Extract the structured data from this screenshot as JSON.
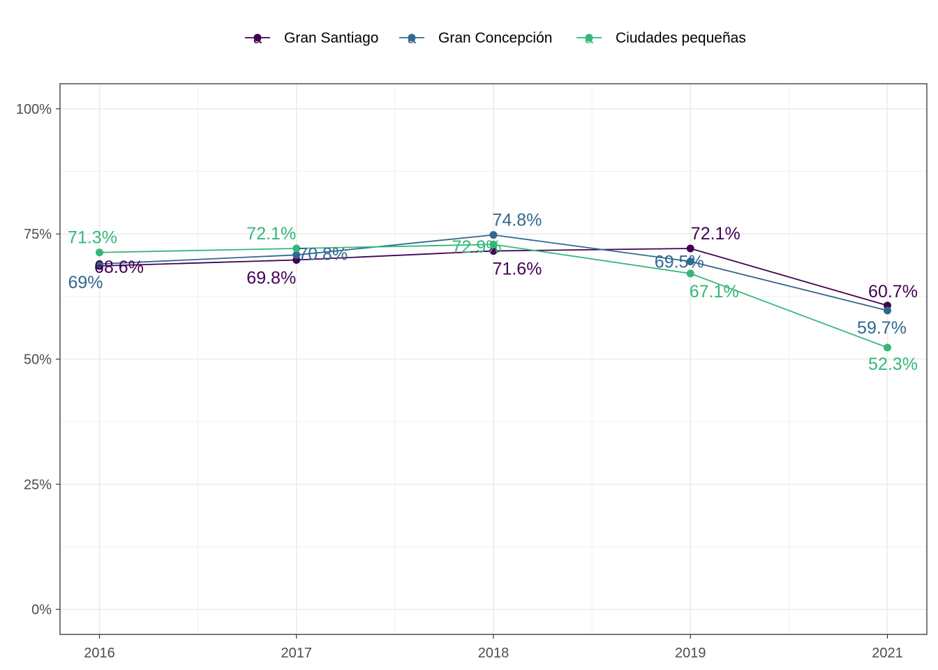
{
  "chart_data": {
    "type": "line",
    "title": "",
    "xlabel": "",
    "ylabel": "",
    "categories": [
      "2016",
      "2017",
      "2018",
      "2019",
      "2021"
    ],
    "ylim": [
      -0.05,
      1.05
    ],
    "y_ticks": [
      0,
      0.25,
      0.5,
      0.75,
      1.0
    ],
    "y_tick_labels": [
      "0%",
      "25%",
      "50%",
      "75%",
      "100%"
    ],
    "grid": true,
    "legend_position": "top",
    "series": [
      {
        "name": "Gran Santiago",
        "color": "#440154",
        "values": [
          0.686,
          0.698,
          0.716,
          0.721,
          0.607
        ],
        "labels": [
          "68.6%",
          "69.8%",
          "71.6%",
          "72.1%",
          "60.7%"
        ]
      },
      {
        "name": "Gran Concepción",
        "color": "#31688e",
        "values": [
          0.69,
          0.708,
          0.748,
          0.695,
          0.597
        ],
        "labels": [
          "69%",
          "70.8%",
          "74.8%",
          "69.5%",
          "59.7%"
        ]
      },
      {
        "name": "Ciudades pequeñas",
        "color": "#35b779",
        "values": [
          0.713,
          0.721,
          0.729,
          0.671,
          0.523
        ],
        "labels": [
          "71.3%",
          "72.1%",
          "72.9%",
          "67.1%",
          "52.3%"
        ]
      }
    ]
  }
}
